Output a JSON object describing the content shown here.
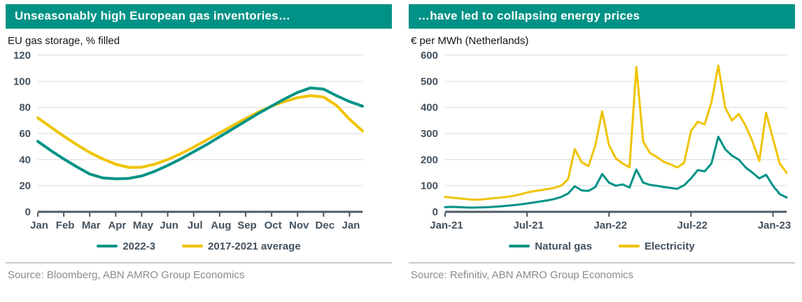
{
  "colors": {
    "teal": "#009286",
    "yellow": "#F0C300",
    "axis_text": "#44525F",
    "axis_line": "#4E5A64",
    "grid": "#DBDBDB",
    "divider": "#C9C9C9",
    "source_text": "#8B8B8B",
    "title_text": "#FFFFFF"
  },
  "chart_data": [
    {
      "type": "line",
      "title": "Unseasonably high European gas inventories…",
      "subtitle": "EU gas storage, % filled",
      "source": "Source: Bloomberg, ABN AMRO Group Economics",
      "ylim": [
        0,
        120
      ],
      "yticks": [
        0,
        20,
        40,
        60,
        80,
        100,
        120
      ],
      "x_range": [
        0,
        12.5
      ],
      "grid": true,
      "legend_position": "bottom",
      "xticks": [
        {
          "x": 0,
          "label": "Jan"
        },
        {
          "x": 1,
          "label": "Feb"
        },
        {
          "x": 2,
          "label": "Mar"
        },
        {
          "x": 3,
          "label": "Apr"
        },
        {
          "x": 4,
          "label": "May"
        },
        {
          "x": 5,
          "label": "Jun"
        },
        {
          "x": 6,
          "label": "Jul"
        },
        {
          "x": 7,
          "label": "Aug"
        },
        {
          "x": 8,
          "label": "Sep"
        },
        {
          "x": 9,
          "label": "Oct"
        },
        {
          "x": 10,
          "label": "Nov"
        },
        {
          "x": 11,
          "label": "Dec"
        },
        {
          "x": 12,
          "label": "Jan"
        }
      ],
      "series": [
        {
          "name": "2022-3",
          "color_key": "teal",
          "values": [
            54,
            47,
            40.5,
            34.5,
            29,
            26,
            25.3,
            25.6,
            27.5,
            31,
            35.5,
            40.5,
            46,
            51.5,
            57.5,
            63.5,
            69.5,
            75.5,
            81,
            86.5,
            91.5,
            95,
            94,
            89,
            84.5,
            81
          ]
        },
        {
          "name": "2017-2021 average",
          "color_key": "yellow",
          "values": [
            72,
            65,
            58,
            51.5,
            45.5,
            40.5,
            36.5,
            34,
            34.2,
            36.5,
            40,
            44.5,
            49.5,
            55,
            60.5,
            66,
            71.5,
            76.5,
            81,
            84.5,
            87.5,
            89,
            88,
            81.5,
            71,
            62
          ]
        }
      ]
    },
    {
      "type": "line",
      "title": "…have led to collapsing energy prices",
      "subtitle": "€ per MWh (Netherlands)",
      "source": "Source: Refinitiv, ABN AMRO Group Economics",
      "ylim": [
        0,
        600
      ],
      "yticks": [
        0,
        100,
        200,
        300,
        400,
        500,
        600
      ],
      "x_range": [
        0,
        25
      ],
      "grid": true,
      "legend_position": "bottom",
      "xticks": [
        {
          "x": 0,
          "label": "Jan-21"
        },
        {
          "x": 6,
          "label": "Jul-21"
        },
        {
          "x": 12,
          "label": "Jan-22"
        },
        {
          "x": 18,
          "label": "Jul-22"
        },
        {
          "x": 24,
          "label": "Jan-23"
        }
      ],
      "series": [
        {
          "name": "Natural gas",
          "color_key": "teal",
          "values": [
            18,
            19,
            18,
            16.5,
            16,
            16.5,
            17.5,
            19,
            21,
            23,
            25.5,
            28.5,
            32,
            36,
            40,
            44,
            49,
            57,
            70,
            98,
            82,
            80,
            95,
            145,
            112,
            100,
            105,
            93,
            162,
            112,
            103,
            100,
            95,
            92,
            88,
            102,
            128,
            160,
            155,
            185,
            288,
            240,
            215,
            200,
            170,
            150,
            128,
            142,
            100,
            68,
            55
          ]
        },
        {
          "name": "Electricity",
          "color_key": "yellow",
          "values": [
            57,
            54,
            52,
            49,
            47,
            47,
            49,
            52,
            54,
            57,
            61,
            67,
            74,
            79,
            83,
            87,
            92,
            100,
            125,
            240,
            190,
            175,
            255,
            385,
            255,
            205,
            185,
            170,
            555,
            270,
            225,
            210,
            192,
            182,
            170,
            188,
            310,
            345,
            335,
            420,
            560,
            400,
            350,
            375,
            330,
            270,
            195,
            380,
            280,
            185,
            150
          ]
        }
      ]
    }
  ]
}
